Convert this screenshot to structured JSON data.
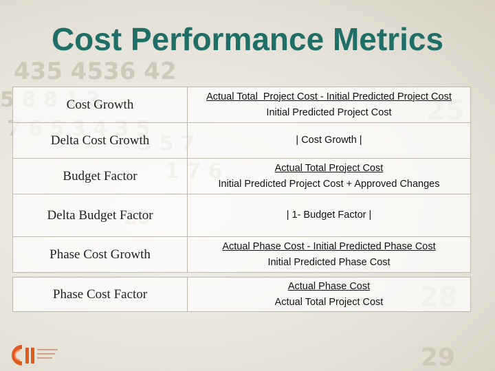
{
  "slide": {
    "title": "Cost Performance Metrics"
  },
  "metrics": [
    {
      "name": "Cost Growth",
      "numerator": "Actual Total  Project Cost - Initial Predicted Project Cost",
      "denominator": "Initial Predicted Project Cost"
    },
    {
      "name": "Delta Cost Growth",
      "formula": "| Cost Growth |"
    },
    {
      "name": "Budget Factor",
      "numerator": "Actual Total Project Cost",
      "denominator": "Initial Predicted Project Cost + Approved Changes"
    },
    {
      "name": "Delta Budget Factor",
      "formula": "| 1- Budget Factor |"
    },
    {
      "name": "Phase Cost Growth",
      "numerator": "Actual Phase Cost - Initial Predicted Phase Cost",
      "denominator": "Initial Predicted Phase Cost"
    },
    {
      "name": "Phase Cost Factor",
      "numerator": "Actual Phase Cost",
      "denominator": "Actual Total Project Cost"
    }
  ],
  "colors": {
    "title": "#1f6f68",
    "logo_orange": "#e05a1e"
  },
  "icons": {
    "logo": "cii-logo-icon"
  }
}
